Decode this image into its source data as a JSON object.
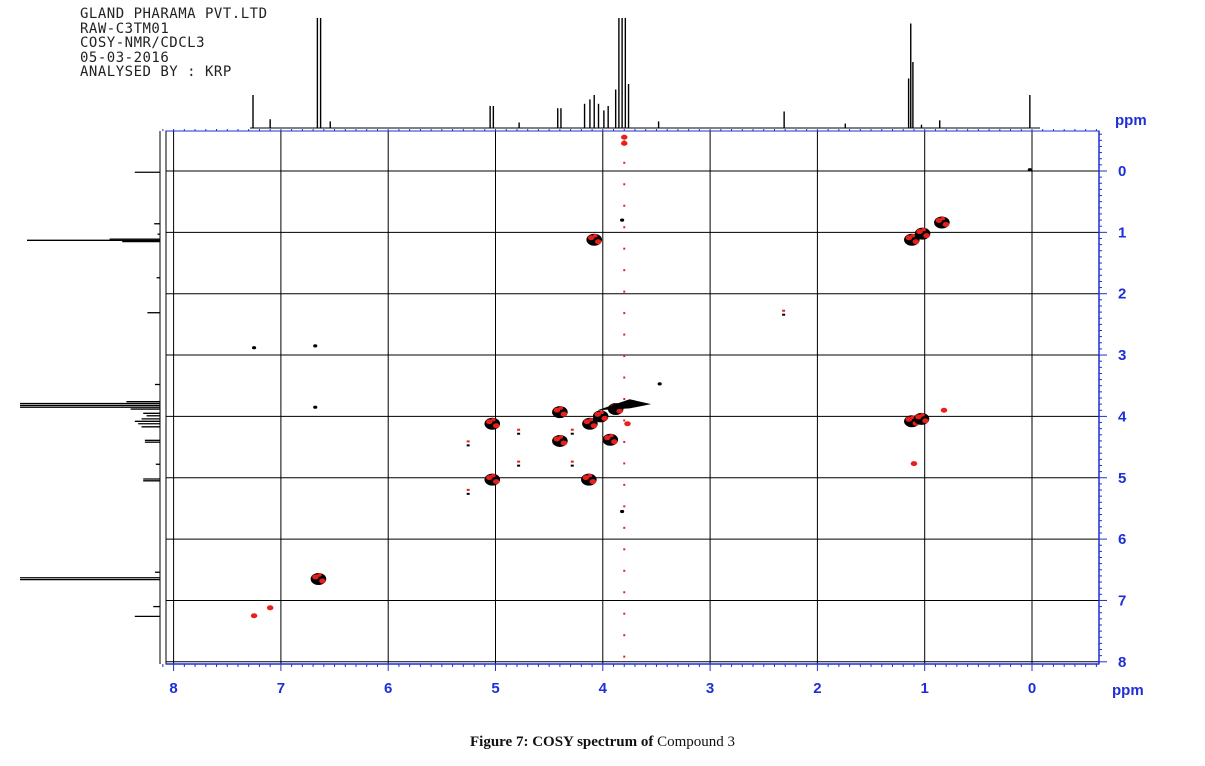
{
  "header_lines": [
    "GLAND PHARAMA PVT.LTD",
    "RAW-C3TM01",
    "COSY-NMR/CDCL3",
    "05-03-2016",
    "ANALYSED BY : KRP"
  ],
  "caption": {
    "bold": "Figure 7: COSY spectrum of",
    "normal": " Compound 3"
  },
  "colors": {
    "axis": "#1f2fd8",
    "grid": "#000000",
    "positive": "#000000",
    "negative": "#e8201c"
  },
  "chart_data": {
    "type": "heatmap",
    "title": "",
    "xlabel": "ppm",
    "ylabel": "ppm",
    "x_reversed": true,
    "xlim": [
      8.1,
      -0.6
    ],
    "ylim": [
      -0.6,
      8.1
    ],
    "x_ticks": [
      8,
      7,
      6,
      5,
      4,
      3,
      2,
      1,
      0
    ],
    "y_ticks": [
      0,
      1,
      2,
      3,
      4,
      5,
      6,
      7,
      8
    ],
    "grid": true,
    "projection_1d": [
      {
        "ppm": 7.26,
        "h": 0.3
      },
      {
        "ppm": 7.1,
        "h": 0.08
      },
      {
        "ppm": 6.66,
        "h": 1.0
      },
      {
        "ppm": 6.63,
        "h": 1.0
      },
      {
        "ppm": 6.54,
        "h": 0.06
      },
      {
        "ppm": 5.05,
        "h": 0.2
      },
      {
        "ppm": 5.02,
        "h": 0.2
      },
      {
        "ppm": 4.78,
        "h": 0.05
      },
      {
        "ppm": 4.42,
        "h": 0.18
      },
      {
        "ppm": 4.39,
        "h": 0.18
      },
      {
        "ppm": 4.17,
        "h": 0.22
      },
      {
        "ppm": 4.12,
        "h": 0.26
      },
      {
        "ppm": 4.08,
        "h": 0.3
      },
      {
        "ppm": 4.04,
        "h": 0.22
      },
      {
        "ppm": 3.99,
        "h": 0.16
      },
      {
        "ppm": 3.95,
        "h": 0.2
      },
      {
        "ppm": 3.88,
        "h": 0.35
      },
      {
        "ppm": 3.85,
        "h": 1.0
      },
      {
        "ppm": 3.82,
        "h": 1.0
      },
      {
        "ppm": 3.79,
        "h": 1.0
      },
      {
        "ppm": 3.76,
        "h": 0.4
      },
      {
        "ppm": 3.48,
        "h": 0.06
      },
      {
        "ppm": 2.31,
        "h": 0.15
      },
      {
        "ppm": 1.74,
        "h": 0.04
      },
      {
        "ppm": 1.15,
        "h": 0.45
      },
      {
        "ppm": 1.13,
        "h": 0.95
      },
      {
        "ppm": 1.11,
        "h": 0.6
      },
      {
        "ppm": 1.03,
        "h": 0.03
      },
      {
        "ppm": 0.86,
        "h": 0.07
      },
      {
        "ppm": 0.02,
        "h": 0.3
      }
    ],
    "cross_peaks": [
      {
        "x": 4.08,
        "y": 1.12,
        "kind": "mixed"
      },
      {
        "x": 1.12,
        "y": 1.12,
        "kind": "diag"
      },
      {
        "x": 1.02,
        "y": 1.02,
        "kind": "diag"
      },
      {
        "x": 0.84,
        "y": 0.84,
        "kind": "diag"
      },
      {
        "x": 1.12,
        "y": 4.08,
        "kind": "mixed"
      },
      {
        "x": 1.03,
        "y": 4.04,
        "kind": "mixed"
      },
      {
        "x": 0.82,
        "y": 3.9,
        "kind": "negsmall"
      },
      {
        "x": 1.1,
        "y": 4.77,
        "kind": "negsmall"
      },
      {
        "x": 5.03,
        "y": 4.12,
        "kind": "mixed"
      },
      {
        "x": 5.03,
        "y": 5.03,
        "kind": "diag"
      },
      {
        "x": 4.13,
        "y": 5.03,
        "kind": "mixed"
      },
      {
        "x": 4.4,
        "y": 3.93,
        "kind": "mixed"
      },
      {
        "x": 4.4,
        "y": 4.4,
        "kind": "diag"
      },
      {
        "x": 3.93,
        "y": 4.38,
        "kind": "mixed"
      },
      {
        "x": 4.12,
        "y": 4.12,
        "kind": "diag"
      },
      {
        "x": 4.02,
        "y": 4.0,
        "kind": "diag"
      },
      {
        "x": 3.88,
        "y": 3.88,
        "kind": "diag"
      },
      {
        "x": 3.77,
        "y": 4.12,
        "kind": "negsmall"
      },
      {
        "x": 6.65,
        "y": 6.65,
        "kind": "diag"
      },
      {
        "x": 7.25,
        "y": 7.25,
        "kind": "negsmall"
      },
      {
        "x": 7.1,
        "y": 7.12,
        "kind": "negsmall"
      },
      {
        "x": 5.25,
        "y": 4.44,
        "kind": "smallpair"
      },
      {
        "x": 5.25,
        "y": 5.23,
        "kind": "smallpair"
      },
      {
        "x": 4.78,
        "y": 4.25,
        "kind": "smallpair"
      },
      {
        "x": 4.78,
        "y": 4.77,
        "kind": "smallpair"
      },
      {
        "x": 4.28,
        "y": 4.25,
        "kind": "smallpair"
      },
      {
        "x": 4.28,
        "y": 4.77,
        "kind": "smallpair"
      },
      {
        "x": 2.31,
        "y": 2.31,
        "kind": "smallpair"
      },
      {
        "x": 6.68,
        "y": 3.85,
        "kind": "dot"
      },
      {
        "x": 7.25,
        "y": 2.88,
        "kind": "dot"
      },
      {
        "x": 6.68,
        "y": 2.85,
        "kind": "dot"
      },
      {
        "x": 0.02,
        "y": -0.02,
        "kind": "dot"
      },
      {
        "x": 3.82,
        "y": 5.55,
        "kind": "dot"
      },
      {
        "x": 3.82,
        "y": 0.8,
        "kind": "dot"
      },
      {
        "x": 3.47,
        "y": 3.47,
        "kind": "dot"
      },
      {
        "x": 3.8,
        "y": -0.55,
        "kind": "negsmall"
      },
      {
        "x": 3.8,
        "y": -0.45,
        "kind": "negsmall"
      }
    ]
  }
}
